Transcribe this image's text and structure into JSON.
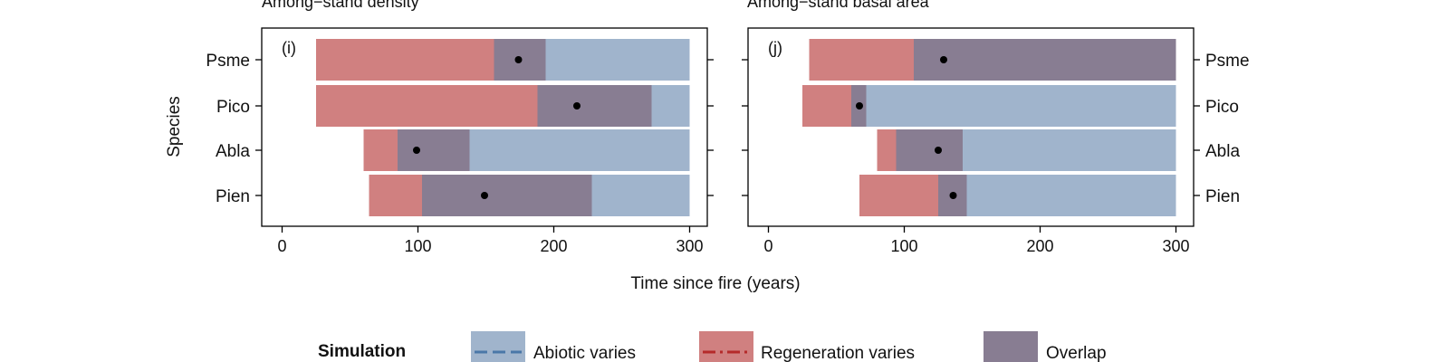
{
  "xlabel": "Time since fire (years)",
  "ylabel": "Species",
  "colors": {
    "abiotic": "#a0b4cc",
    "regeneration": "#d08080",
    "overlap": "#887d92",
    "abiotic_line": "#4a77a8",
    "regeneration_line": "#b52a2a"
  },
  "legend": {
    "title": "Simulation",
    "items": [
      {
        "label": "Abiotic varies",
        "key": "abiotic"
      },
      {
        "label": "Regeneration varies",
        "key": "regeneration"
      },
      {
        "label": "Overlap",
        "key": "overlap"
      }
    ]
  },
  "chart_data": [
    {
      "type": "bar",
      "title": "Among−stand density",
      "panel_label": "(i)",
      "xlim": [
        -15,
        313
      ],
      "xticks": [
        0,
        100,
        200,
        300
      ],
      "categories": [
        "Psme",
        "Pico",
        "Abla",
        "Pien"
      ],
      "bars": [
        {
          "species": "Psme",
          "regeneration": [
            25,
            156
          ],
          "overlap": [
            156,
            194
          ],
          "abiotic": [
            194,
            300
          ],
          "point": 174
        },
        {
          "species": "Pico",
          "regeneration": [
            25,
            188
          ],
          "overlap": [
            188,
            272
          ],
          "abiotic": [
            272,
            300
          ],
          "point": 217
        },
        {
          "species": "Abla",
          "regeneration": [
            60,
            85
          ],
          "overlap": [
            85,
            138
          ],
          "abiotic": [
            138,
            300
          ],
          "point": 99
        },
        {
          "species": "Pien",
          "regeneration": [
            64,
            103
          ],
          "overlap": [
            103,
            228
          ],
          "abiotic": [
            228,
            300
          ],
          "point": 149
        }
      ]
    },
    {
      "type": "bar",
      "title": "Among−stand basal area",
      "panel_label": "(j)",
      "xlim": [
        -15,
        313
      ],
      "xticks": [
        0,
        100,
        200,
        300
      ],
      "categories": [
        "Psme",
        "Pico",
        "Abla",
        "Pien"
      ],
      "bars": [
        {
          "species": "Psme",
          "regeneration": [
            30,
            107
          ],
          "overlap": [
            107,
            300
          ],
          "abiotic": null,
          "point": 129
        },
        {
          "species": "Pico",
          "regeneration": [
            25,
            61
          ],
          "overlap": [
            61,
            72
          ],
          "abiotic": [
            72,
            300
          ],
          "point": 67
        },
        {
          "species": "Abla",
          "regeneration": [
            80,
            94
          ],
          "overlap": [
            94,
            143
          ],
          "abiotic": [
            143,
            300
          ],
          "point": 125
        },
        {
          "species": "Pien",
          "regeneration": [
            67,
            125
          ],
          "overlap": [
            125,
            146
          ],
          "abiotic": [
            146,
            300
          ],
          "point": 136
        }
      ]
    }
  ]
}
